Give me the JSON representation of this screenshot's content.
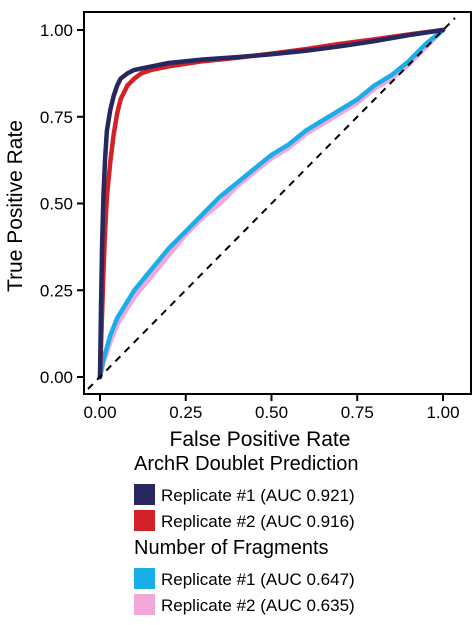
{
  "chart_data": {
    "type": "line",
    "xlabel": "False Positive Rate",
    "ylabel": "True Positive Rate",
    "xlim": [
      0,
      1
    ],
    "ylim": [
      0,
      1
    ],
    "x_ticks": [
      "0.00",
      "0.25",
      "0.50",
      "0.75",
      "1.00"
    ],
    "y_ticks": [
      "0.00",
      "0.25",
      "0.50",
      "0.75",
      "1.00"
    ],
    "grid": false,
    "reference_line": {
      "style": "dashed",
      "points": [
        [
          0,
          0
        ],
        [
          1,
          1
        ]
      ]
    },
    "legend_position": "bottom",
    "legend_groups": [
      {
        "title": "ArchR Doublet Prediction",
        "series": [
          {
            "name": "Replicate #1 (AUC 0.921)",
            "color": "#27285f",
            "points": [
              [
                0,
                0
              ],
              [
                0.003,
                0.2
              ],
              [
                0.006,
                0.38
              ],
              [
                0.01,
                0.52
              ],
              [
                0.015,
                0.63
              ],
              [
                0.02,
                0.71
              ],
              [
                0.03,
                0.77
              ],
              [
                0.04,
                0.81
              ],
              [
                0.05,
                0.84
              ],
              [
                0.06,
                0.86
              ],
              [
                0.08,
                0.875
              ],
              [
                0.1,
                0.885
              ],
              [
                0.15,
                0.895
              ],
              [
                0.2,
                0.905
              ],
              [
                0.3,
                0.915
              ],
              [
                0.4,
                0.922
              ],
              [
                0.5,
                0.93
              ],
              [
                0.6,
                0.94
              ],
              [
                0.7,
                0.953
              ],
              [
                0.8,
                0.968
              ],
              [
                0.9,
                0.985
              ],
              [
                1,
                1
              ]
            ]
          },
          {
            "name": "Replicate #2 (AUC 0.916)",
            "color": "#d42027",
            "points": [
              [
                0,
                0
              ],
              [
                0.005,
                0.15
              ],
              [
                0.01,
                0.3
              ],
              [
                0.015,
                0.42
              ],
              [
                0.02,
                0.52
              ],
              [
                0.03,
                0.62
              ],
              [
                0.04,
                0.7
              ],
              [
                0.05,
                0.76
              ],
              [
                0.06,
                0.8
              ],
              [
                0.08,
                0.84
              ],
              [
                0.1,
                0.86
              ],
              [
                0.12,
                0.875
              ],
              [
                0.15,
                0.885
              ],
              [
                0.2,
                0.895
              ],
              [
                0.3,
                0.91
              ],
              [
                0.4,
                0.92
              ],
              [
                0.5,
                0.932
              ],
              [
                0.6,
                0.945
              ],
              [
                0.7,
                0.96
              ],
              [
                0.8,
                0.973
              ],
              [
                0.9,
                0.987
              ],
              [
                1,
                1
              ]
            ]
          }
        ]
      },
      {
        "title": "Number of Fragments",
        "series": [
          {
            "name": "Replicate #1 (AUC 0.647)",
            "color": "#1aaee8",
            "points": [
              [
                0,
                0
              ],
              [
                0.01,
                0.05
              ],
              [
                0.03,
                0.12
              ],
              [
                0.05,
                0.17
              ],
              [
                0.1,
                0.25
              ],
              [
                0.15,
                0.31
              ],
              [
                0.2,
                0.37
              ],
              [
                0.25,
                0.42
              ],
              [
                0.3,
                0.47
              ],
              [
                0.35,
                0.52
              ],
              [
                0.4,
                0.56
              ],
              [
                0.45,
                0.6
              ],
              [
                0.5,
                0.64
              ],
              [
                0.55,
                0.67
              ],
              [
                0.6,
                0.71
              ],
              [
                0.65,
                0.74
              ],
              [
                0.7,
                0.77
              ],
              [
                0.75,
                0.8
              ],
              [
                0.8,
                0.84
              ],
              [
                0.85,
                0.87
              ],
              [
                0.9,
                0.91
              ],
              [
                0.95,
                0.96
              ],
              [
                1,
                1
              ]
            ]
          },
          {
            "name": "Replicate #2 (AUC 0.635)",
            "color": "#f2a7d8",
            "points": [
              [
                0,
                0
              ],
              [
                0.01,
                0.04
              ],
              [
                0.03,
                0.1
              ],
              [
                0.05,
                0.15
              ],
              [
                0.1,
                0.23
              ],
              [
                0.15,
                0.29
              ],
              [
                0.2,
                0.35
              ],
              [
                0.25,
                0.41
              ],
              [
                0.3,
                0.46
              ],
              [
                0.35,
                0.5
              ],
              [
                0.4,
                0.55
              ],
              [
                0.45,
                0.59
              ],
              [
                0.5,
                0.63
              ],
              [
                0.55,
                0.66
              ],
              [
                0.6,
                0.7
              ],
              [
                0.65,
                0.73
              ],
              [
                0.7,
                0.76
              ],
              [
                0.75,
                0.79
              ],
              [
                0.8,
                0.83
              ],
              [
                0.85,
                0.86
              ],
              [
                0.9,
                0.9
              ],
              [
                0.95,
                0.95
              ],
              [
                1,
                1
              ]
            ]
          }
        ]
      }
    ]
  }
}
